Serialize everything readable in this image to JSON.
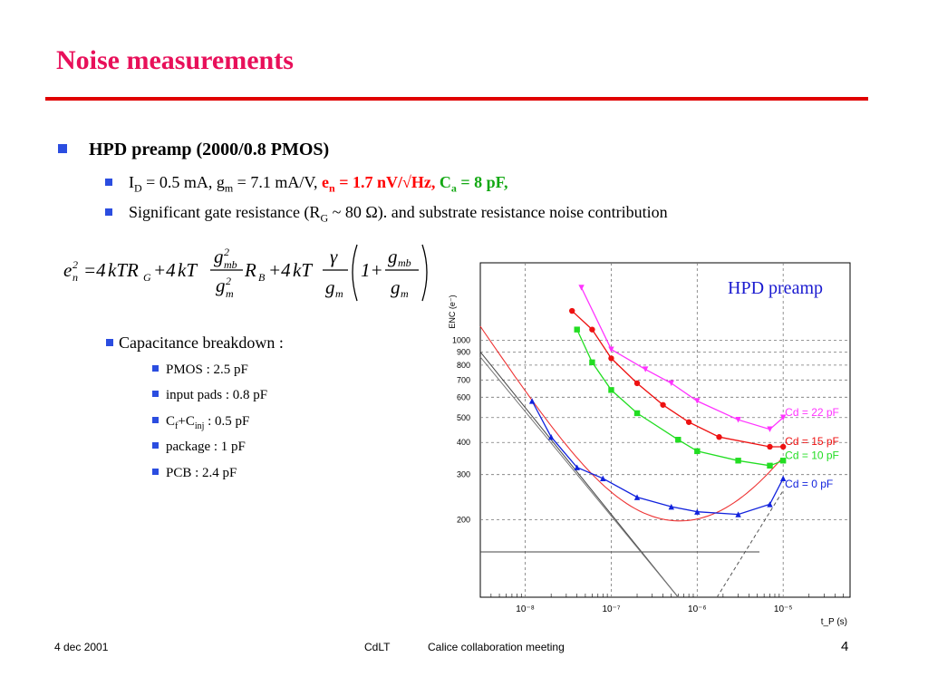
{
  "slide": {
    "title": "Noise measurements",
    "bullet1": "HPD preamp (2000/0.8 PMOS)",
    "sub1": {
      "id_label": "I",
      "id_sub": "D",
      "id_rest": " = 0.5 mA, g",
      "gm_sub": "m",
      "gm_rest": " = 7.1 mA/V, ",
      "en_label": "e",
      "en_sub": "n",
      "en_rest": " = 1.7 nV/√Hz",
      "comma1": ",",
      "ca_label": "C",
      "ca_sub": "a",
      "ca_rest": " = 8 pF,"
    },
    "sub2": {
      "pre": "Significant gate resistance (R",
      "sub": "G",
      "post": " ~ 80 Ω). and substrate resistance noise contribution"
    },
    "capacitance": {
      "heading": "Capacitance breakdown :",
      "items": [
        {
          "text": "PMOS : 2.5 pF"
        },
        {
          "text": "input pads : 0.8 pF"
        },
        {
          "pre": "C",
          "sub1": "f",
          "mid": "+C",
          "sub2": "inj",
          "post": " : 0.5 pF"
        },
        {
          "text": "package : 1 pF"
        },
        {
          "text": "PCB : 2.4 pF"
        }
      ]
    },
    "footer": {
      "date": "4 dec 2001",
      "org": "CdLT",
      "meeting": "Calice collaboration meeting",
      "page": "4"
    }
  },
  "chart_data": {
    "type": "scatter",
    "title": "HPD preamp",
    "xlabel": "t_P (s)",
    "ylabel": "ENC (e⁻)",
    "x_scale": "log",
    "y_scale": "log",
    "xlim": [
      3e-09,
      6e-05
    ],
    "ylim": [
      100,
      2000
    ],
    "x_ticks": [
      "10⁻⁸",
      "10⁻⁷",
      "10⁻⁶",
      "10⁻⁵"
    ],
    "y_ticks": [
      "200",
      "300",
      "400",
      "500",
      "600",
      "700",
      "800",
      "900",
      "1000"
    ],
    "grid": true,
    "series": [
      {
        "name": "Cd = 22 pF",
        "color": "#ff33ff",
        "marker": "triangle-down",
        "x": [
          4.5e-08,
          1e-07,
          2.5e-07,
          5e-07,
          1e-06,
          3e-06,
          7e-06,
          1e-05
        ],
        "y": [
          1600,
          920,
          770,
          680,
          580,
          490,
          450,
          500
        ]
      },
      {
        "name": "Cd = 15 pF",
        "color": "#ee1111",
        "marker": "circle",
        "x": [
          3.5e-08,
          6e-08,
          1e-07,
          2e-07,
          4e-07,
          8e-07,
          1.8e-06,
          7e-06,
          1e-05
        ],
        "y": [
          1300,
          1100,
          850,
          680,
          560,
          480,
          420,
          385,
          385
        ]
      },
      {
        "name": "Cd = 10 pF",
        "color": "#22dd22",
        "marker": "square",
        "x": [
          4e-08,
          6e-08,
          1e-07,
          2e-07,
          6e-07,
          1e-06,
          3e-06,
          7e-06,
          1e-05
        ],
        "y": [
          1100,
          820,
          640,
          520,
          410,
          370,
          340,
          325,
          340
        ]
      },
      {
        "name": "Cd = 0 pF",
        "color": "#1122dd",
        "marker": "triangle-up",
        "x": [
          1.2e-08,
          2e-08,
          4e-08,
          8e-08,
          2e-07,
          5e-07,
          1e-06,
          3e-06,
          7e-06,
          1e-05
        ],
        "y": [
          580,
          420,
          320,
          290,
          245,
          225,
          215,
          210,
          230,
          290
        ]
      }
    ],
    "fit_curve_color": "#ee3333",
    "asymptote_color": "#444444",
    "hline_value": 150
  }
}
